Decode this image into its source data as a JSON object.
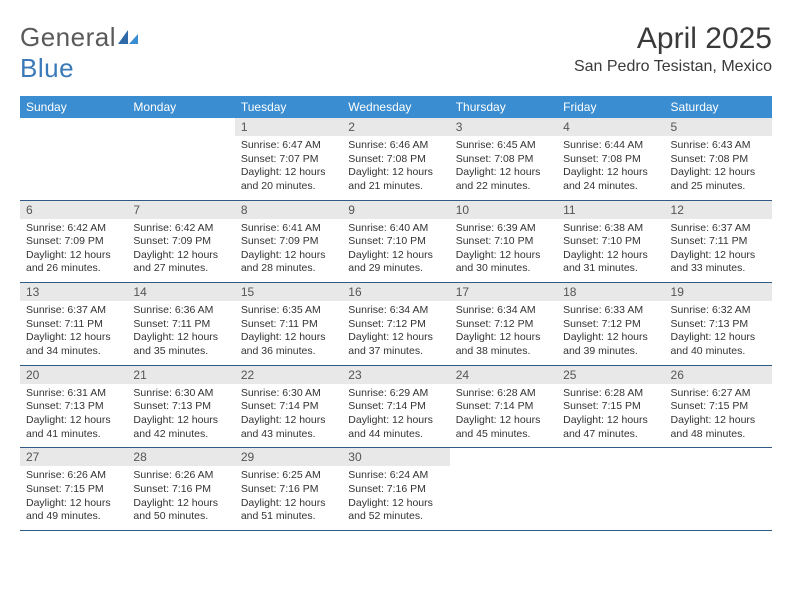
{
  "logo": {
    "text_a": "General",
    "text_b": "Blue"
  },
  "title": "April 2025",
  "location": "San Pedro Tesistan, Mexico",
  "colors": {
    "header_bg": "#3a8dd0",
    "header_text": "#ffffff",
    "daynum_bg": "#e8e8e8",
    "cell_border": "#2f5b85",
    "body_text": "#333333",
    "logo_gray": "#5a5a5a",
    "logo_blue": "#3a7ab8"
  },
  "day_headers": [
    "Sunday",
    "Monday",
    "Tuesday",
    "Wednesday",
    "Thursday",
    "Friday",
    "Saturday"
  ],
  "weeks": [
    [
      null,
      null,
      {
        "n": "1",
        "sunrise": "Sunrise: 6:47 AM",
        "sunset": "Sunset: 7:07 PM",
        "day1": "Daylight: 12 hours",
        "day2": "and 20 minutes."
      },
      {
        "n": "2",
        "sunrise": "Sunrise: 6:46 AM",
        "sunset": "Sunset: 7:08 PM",
        "day1": "Daylight: 12 hours",
        "day2": "and 21 minutes."
      },
      {
        "n": "3",
        "sunrise": "Sunrise: 6:45 AM",
        "sunset": "Sunset: 7:08 PM",
        "day1": "Daylight: 12 hours",
        "day2": "and 22 minutes."
      },
      {
        "n": "4",
        "sunrise": "Sunrise: 6:44 AM",
        "sunset": "Sunset: 7:08 PM",
        "day1": "Daylight: 12 hours",
        "day2": "and 24 minutes."
      },
      {
        "n": "5",
        "sunrise": "Sunrise: 6:43 AM",
        "sunset": "Sunset: 7:08 PM",
        "day1": "Daylight: 12 hours",
        "day2": "and 25 minutes."
      }
    ],
    [
      {
        "n": "6",
        "sunrise": "Sunrise: 6:42 AM",
        "sunset": "Sunset: 7:09 PM",
        "day1": "Daylight: 12 hours",
        "day2": "and 26 minutes."
      },
      {
        "n": "7",
        "sunrise": "Sunrise: 6:42 AM",
        "sunset": "Sunset: 7:09 PM",
        "day1": "Daylight: 12 hours",
        "day2": "and 27 minutes."
      },
      {
        "n": "8",
        "sunrise": "Sunrise: 6:41 AM",
        "sunset": "Sunset: 7:09 PM",
        "day1": "Daylight: 12 hours",
        "day2": "and 28 minutes."
      },
      {
        "n": "9",
        "sunrise": "Sunrise: 6:40 AM",
        "sunset": "Sunset: 7:10 PM",
        "day1": "Daylight: 12 hours",
        "day2": "and 29 minutes."
      },
      {
        "n": "10",
        "sunrise": "Sunrise: 6:39 AM",
        "sunset": "Sunset: 7:10 PM",
        "day1": "Daylight: 12 hours",
        "day2": "and 30 minutes."
      },
      {
        "n": "11",
        "sunrise": "Sunrise: 6:38 AM",
        "sunset": "Sunset: 7:10 PM",
        "day1": "Daylight: 12 hours",
        "day2": "and 31 minutes."
      },
      {
        "n": "12",
        "sunrise": "Sunrise: 6:37 AM",
        "sunset": "Sunset: 7:11 PM",
        "day1": "Daylight: 12 hours",
        "day2": "and 33 minutes."
      }
    ],
    [
      {
        "n": "13",
        "sunrise": "Sunrise: 6:37 AM",
        "sunset": "Sunset: 7:11 PM",
        "day1": "Daylight: 12 hours",
        "day2": "and 34 minutes."
      },
      {
        "n": "14",
        "sunrise": "Sunrise: 6:36 AM",
        "sunset": "Sunset: 7:11 PM",
        "day1": "Daylight: 12 hours",
        "day2": "and 35 minutes."
      },
      {
        "n": "15",
        "sunrise": "Sunrise: 6:35 AM",
        "sunset": "Sunset: 7:11 PM",
        "day1": "Daylight: 12 hours",
        "day2": "and 36 minutes."
      },
      {
        "n": "16",
        "sunrise": "Sunrise: 6:34 AM",
        "sunset": "Sunset: 7:12 PM",
        "day1": "Daylight: 12 hours",
        "day2": "and 37 minutes."
      },
      {
        "n": "17",
        "sunrise": "Sunrise: 6:34 AM",
        "sunset": "Sunset: 7:12 PM",
        "day1": "Daylight: 12 hours",
        "day2": "and 38 minutes."
      },
      {
        "n": "18",
        "sunrise": "Sunrise: 6:33 AM",
        "sunset": "Sunset: 7:12 PM",
        "day1": "Daylight: 12 hours",
        "day2": "and 39 minutes."
      },
      {
        "n": "19",
        "sunrise": "Sunrise: 6:32 AM",
        "sunset": "Sunset: 7:13 PM",
        "day1": "Daylight: 12 hours",
        "day2": "and 40 minutes."
      }
    ],
    [
      {
        "n": "20",
        "sunrise": "Sunrise: 6:31 AM",
        "sunset": "Sunset: 7:13 PM",
        "day1": "Daylight: 12 hours",
        "day2": "and 41 minutes."
      },
      {
        "n": "21",
        "sunrise": "Sunrise: 6:30 AM",
        "sunset": "Sunset: 7:13 PM",
        "day1": "Daylight: 12 hours",
        "day2": "and 42 minutes."
      },
      {
        "n": "22",
        "sunrise": "Sunrise: 6:30 AM",
        "sunset": "Sunset: 7:14 PM",
        "day1": "Daylight: 12 hours",
        "day2": "and 43 minutes."
      },
      {
        "n": "23",
        "sunrise": "Sunrise: 6:29 AM",
        "sunset": "Sunset: 7:14 PM",
        "day1": "Daylight: 12 hours",
        "day2": "and 44 minutes."
      },
      {
        "n": "24",
        "sunrise": "Sunrise: 6:28 AM",
        "sunset": "Sunset: 7:14 PM",
        "day1": "Daylight: 12 hours",
        "day2": "and 45 minutes."
      },
      {
        "n": "25",
        "sunrise": "Sunrise: 6:28 AM",
        "sunset": "Sunset: 7:15 PM",
        "day1": "Daylight: 12 hours",
        "day2": "and 47 minutes."
      },
      {
        "n": "26",
        "sunrise": "Sunrise: 6:27 AM",
        "sunset": "Sunset: 7:15 PM",
        "day1": "Daylight: 12 hours",
        "day2": "and 48 minutes."
      }
    ],
    [
      {
        "n": "27",
        "sunrise": "Sunrise: 6:26 AM",
        "sunset": "Sunset: 7:15 PM",
        "day1": "Daylight: 12 hours",
        "day2": "and 49 minutes."
      },
      {
        "n": "28",
        "sunrise": "Sunrise: 6:26 AM",
        "sunset": "Sunset: 7:16 PM",
        "day1": "Daylight: 12 hours",
        "day2": "and 50 minutes."
      },
      {
        "n": "29",
        "sunrise": "Sunrise: 6:25 AM",
        "sunset": "Sunset: 7:16 PM",
        "day1": "Daylight: 12 hours",
        "day2": "and 51 minutes."
      },
      {
        "n": "30",
        "sunrise": "Sunrise: 6:24 AM",
        "sunset": "Sunset: 7:16 PM",
        "day1": "Daylight: 12 hours",
        "day2": "and 52 minutes."
      },
      null,
      null,
      null
    ]
  ]
}
